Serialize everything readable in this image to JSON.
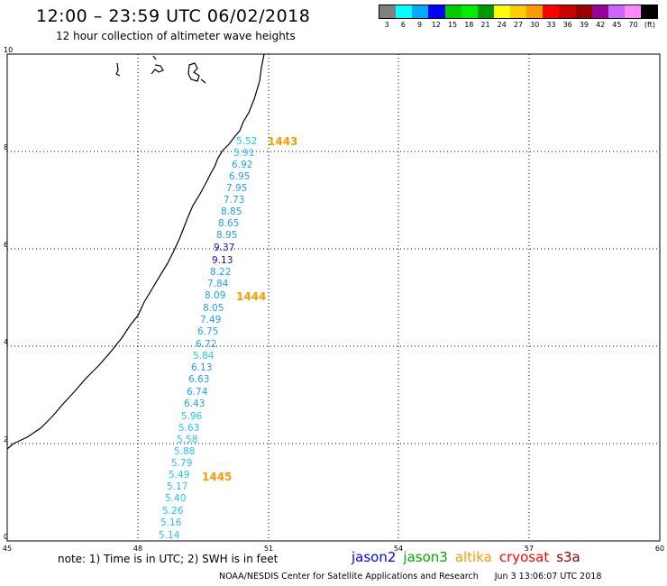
{
  "header": {
    "title": "12:00 – 23:59 UTC 06/02/2018",
    "subtitle": "12 hour collection of altimeter wave heights"
  },
  "legend": {
    "colors": [
      "#808080",
      "#00ffff",
      "#00aaff",
      "#0000ff",
      "#00cc00",
      "#00ee00",
      "#009900",
      "#ffff00",
      "#ffcc00",
      "#ff9900",
      "#ff0000",
      "#cc0000",
      "#990000",
      "#990099",
      "#cc66ff",
      "#ff88ff",
      "#000000"
    ],
    "labels": [
      "3",
      "6",
      "9",
      "12",
      "15",
      "18",
      "21",
      "24",
      "27",
      "30",
      "33",
      "36",
      "39",
      "42",
      "45",
      "70",
      "(ft)"
    ]
  },
  "axes": {
    "x_ticks": [
      "45",
      "48",
      "51",
      "54",
      "57",
      "60"
    ],
    "y_ticks": [
      "0",
      "2",
      "4",
      "6",
      "8",
      "10"
    ]
  },
  "measurements": [
    {
      "value": "5.52",
      "color": "#1ec8ff"
    },
    {
      "value": "5.91",
      "color": "#1ec8ff"
    },
    {
      "value": "6.92",
      "color": "#1ea0ff"
    },
    {
      "value": "6.95",
      "color": "#1ea0ff"
    },
    {
      "value": "7.95",
      "color": "#1ea0ff"
    },
    {
      "value": "7.73",
      "color": "#1ea0ff"
    },
    {
      "value": "8.85",
      "color": "#1ea0ff"
    },
    {
      "value": "8.65",
      "color": "#1ea0ff"
    },
    {
      "value": "8.95",
      "color": "#1ea0ff"
    },
    {
      "value": "9.37",
      "color": "#1010d0"
    },
    {
      "value": "9.13",
      "color": "#1010d0"
    },
    {
      "value": "8.22",
      "color": "#1ea0ff"
    },
    {
      "value": "7.84",
      "color": "#1ea0ff"
    },
    {
      "value": "8.09",
      "color": "#1ea0ff"
    },
    {
      "value": "8.05",
      "color": "#1ea0ff"
    },
    {
      "value": "7.49",
      "color": "#1ea0ff"
    },
    {
      "value": "6.75",
      "color": "#1ea0ff"
    },
    {
      "value": "6.72",
      "color": "#1ea0ff"
    },
    {
      "value": "5.84",
      "color": "#1ec8ff"
    },
    {
      "value": "6.13",
      "color": "#1ea0ff"
    },
    {
      "value": "6.63",
      "color": "#1ea0ff"
    },
    {
      "value": "6.74",
      "color": "#1ea0ff"
    },
    {
      "value": "6.43",
      "color": "#1ea0ff"
    },
    {
      "value": "5.96",
      "color": "#1ec8ff"
    },
    {
      "value": "5.63",
      "color": "#1ec8ff"
    },
    {
      "value": "5.58",
      "color": "#1ec8ff"
    },
    {
      "value": "5.88",
      "color": "#1ec8ff"
    },
    {
      "value": "5.79",
      "color": "#1ec8ff"
    },
    {
      "value": "5.49",
      "color": "#1ec8ff"
    },
    {
      "value": "5.17",
      "color": "#1ec8ff"
    },
    {
      "value": "5.40",
      "color": "#1ec8ff"
    },
    {
      "value": "5.26",
      "color": "#1ec8ff"
    },
    {
      "value": "5.16",
      "color": "#1ec8ff"
    },
    {
      "value": "5.14",
      "color": "#1ec8ff"
    }
  ],
  "time_labels": [
    {
      "text": "1443",
      "color": "#ff9900"
    },
    {
      "text": "1444",
      "color": "#ff9900"
    },
    {
      "text": "1445",
      "color": "#ff9900"
    }
  ],
  "footer": {
    "note": "note: 1) Time is in UTC; 2) SWH is in feet",
    "satellites": [
      {
        "name": "jason2",
        "color": "#0000ff"
      },
      {
        "name": "jason3",
        "color": "#00aa00"
      },
      {
        "name": "altika",
        "color": "#ff9900"
      },
      {
        "name": "cryosat",
        "color": "#ff0000"
      },
      {
        "name": "s3a",
        "color": "#990000"
      }
    ],
    "credit": "NOAA/NESDIS Center for Satellite Applications and Research",
    "timestamp": "Jun  3 13:06:07 UTC 2018"
  }
}
